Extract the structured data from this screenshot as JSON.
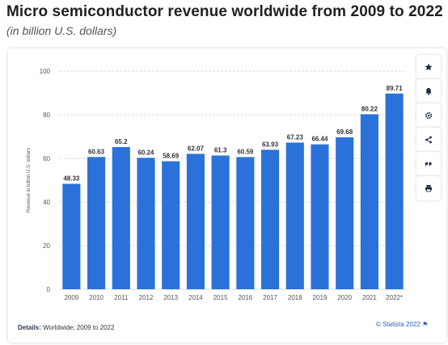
{
  "header": {
    "title": "Micro semiconductor revenue worldwide from 2009 to 2022",
    "subtitle": "(in billion U.S. dollars)"
  },
  "toolbar": {
    "buttons": [
      "star-icon",
      "bell-icon",
      "gear-icon",
      "share-icon",
      "quote-icon",
      "print-icon"
    ]
  },
  "footer": {
    "details_label": "Details:",
    "details_text": "Worldwide; 2009 to 2022",
    "source": "© Statista 2022"
  },
  "colors": {
    "bar": "#2a72d9",
    "grid": "#d9d9d9",
    "text": "#333333"
  },
  "chart_data": {
    "type": "bar",
    "categories": [
      "2009",
      "2010",
      "2011",
      "2012",
      "2013",
      "2014",
      "2015",
      "2016",
      "2017",
      "2018",
      "2019",
      "2020",
      "2021",
      "2022*"
    ],
    "values": [
      48.33,
      60.63,
      65.2,
      60.24,
      58.69,
      62.07,
      61.3,
      60.59,
      63.93,
      67.23,
      66.44,
      69.68,
      80.22,
      89.71
    ],
    "value_labels": [
      "48.33",
      "60.63",
      "65.2",
      "60.24",
      "58.69",
      "62.07",
      "61.3",
      "60.59",
      "63.93",
      "67.23",
      "66.44",
      "69.68",
      "80.22",
      "89.71"
    ],
    "ylabel": "Revenue in billion U.S. dollars",
    "xlabel": "",
    "ylim": [
      0,
      100
    ],
    "yticks": [
      "0",
      "20",
      "40",
      "60",
      "80",
      "100"
    ],
    "grid": true
  }
}
